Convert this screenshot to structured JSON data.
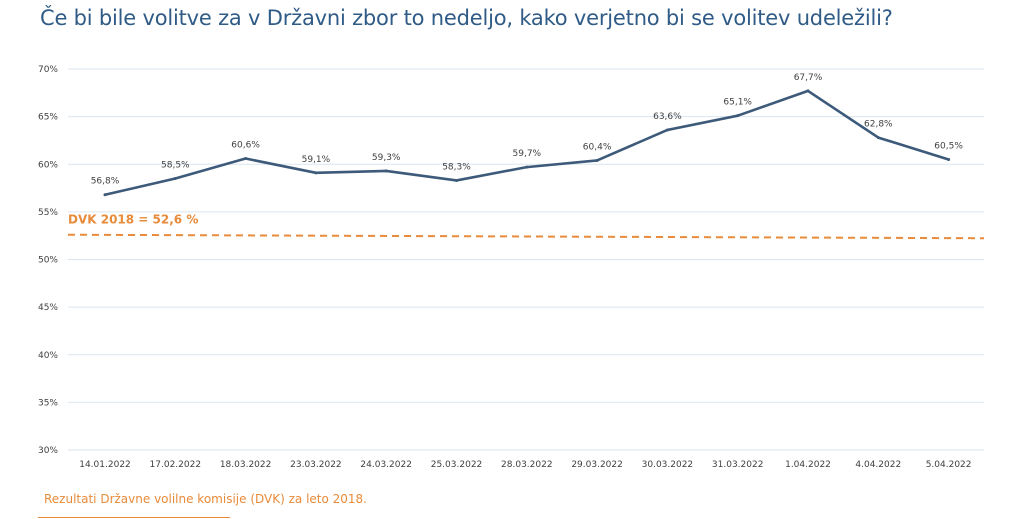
{
  "title": "Če bi bile volitve za v Državni zbor to nedeljo, kako verjetno bi se volitev udeležili?",
  "footnote": "Rezultati Državne volilne komisije (DVK) za leto 2018.",
  "colors": {
    "line": "#3d5a7a",
    "reference": "#e88b3a",
    "grid": "#d9e6ef",
    "title": "#2f5b86"
  },
  "chart_data": {
    "type": "line",
    "categories": [
      "14.01.2022",
      "17.02.2022",
      "18.03.2022",
      "23.03.2022",
      "24.03.2022",
      "25.03.2022",
      "28.03.2022",
      "29.03.2022",
      "30.03.2022",
      "31.03.2022",
      "1.04.2022",
      "4.04.2022",
      "5.04.2022"
    ],
    "series": [
      {
        "values": [
          56.8,
          58.5,
          60.6,
          59.1,
          59.3,
          58.3,
          59.7,
          60.4,
          63.6,
          65.1,
          67.7,
          62.8,
          60.5
        ],
        "labels": [
          "56,8%",
          "58,5%",
          "60,6%",
          "59,1%",
          "59,3%",
          "58,3%",
          "59,7%",
          "60,4%",
          "63,6%",
          "65,1%",
          "67,7%",
          "62,8%",
          "60,5%"
        ]
      }
    ],
    "reference_line": {
      "value": 52.6,
      "label": "DVK 2018 = 52,6 %"
    },
    "ylim": [
      30,
      70
    ],
    "yticks": [
      "30%",
      "35%",
      "40%",
      "45%",
      "50%",
      "55%",
      "60%",
      "65%",
      "70%"
    ],
    "grid": true,
    "legend": "none"
  }
}
